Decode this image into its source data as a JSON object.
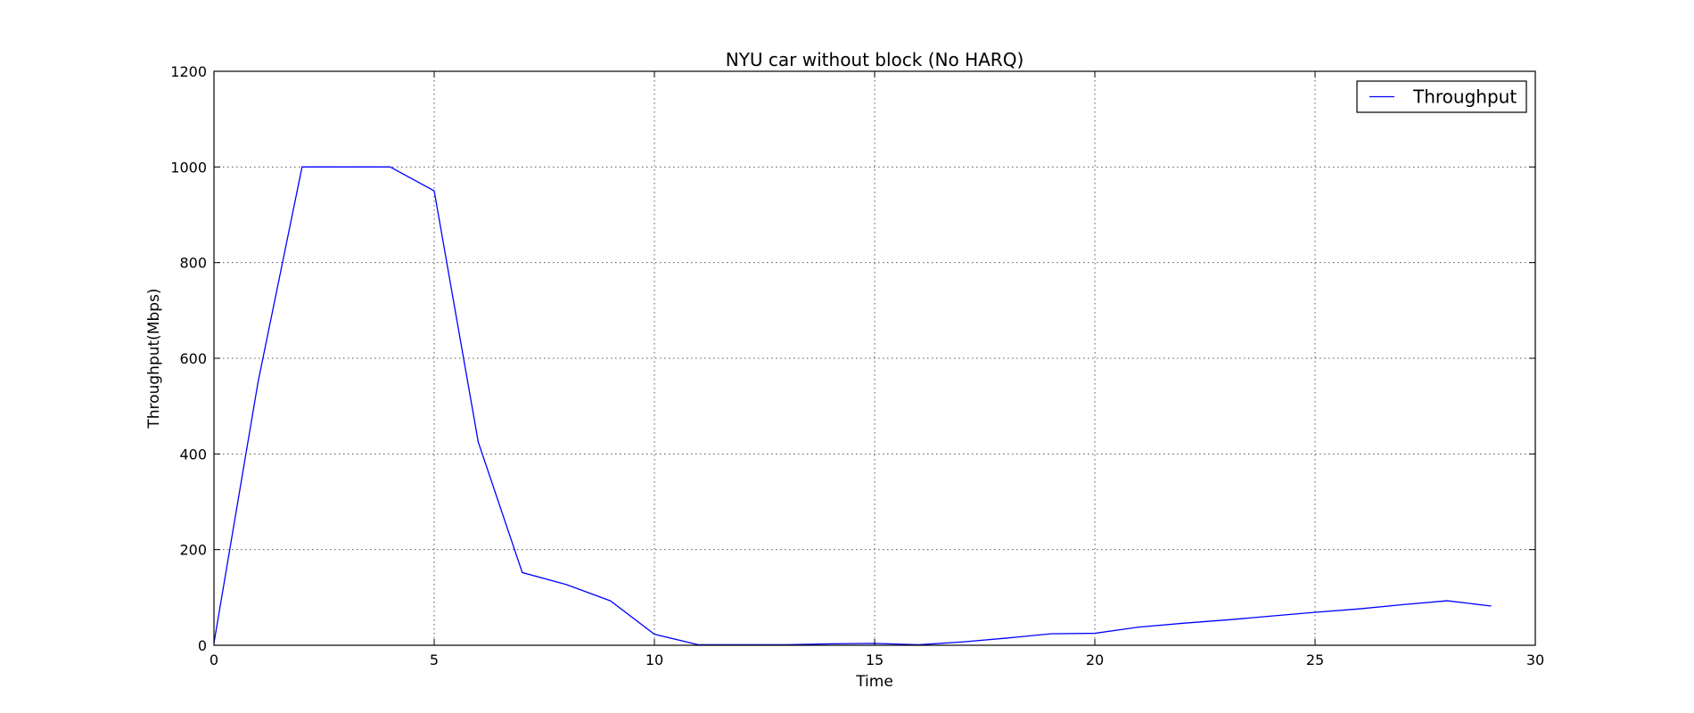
{
  "chart_data": {
    "type": "line",
    "title": "NYU car without block (No HARQ)",
    "xlabel": "Time",
    "ylabel": "Throughput(Mbps)",
    "xlim": [
      0,
      30
    ],
    "ylim": [
      0,
      1200
    ],
    "xticks": [
      "0",
      "5",
      "10",
      "15",
      "20",
      "25",
      "30"
    ],
    "yticks": [
      "0",
      "200",
      "400",
      "600",
      "800",
      "1000",
      "1200"
    ],
    "grid": true,
    "legend_position": "top-right",
    "series": [
      {
        "name": "Throughput",
        "color": "#0000ff",
        "x": [
          0,
          1,
          2,
          3,
          4,
          5,
          6,
          7,
          8,
          9,
          10,
          11,
          12,
          13,
          14,
          15,
          16,
          17,
          18,
          19,
          20,
          21,
          22,
          23,
          24,
          25,
          26,
          27,
          28,
          29
        ],
        "y": [
          5,
          550,
          1000,
          1000,
          1000,
          950,
          425,
          152,
          127,
          93,
          23,
          1,
          1,
          1,
          3,
          4,
          1,
          7,
          15,
          24,
          25,
          38,
          46,
          53,
          61,
          69,
          76,
          85,
          93,
          82
        ]
      }
    ]
  }
}
